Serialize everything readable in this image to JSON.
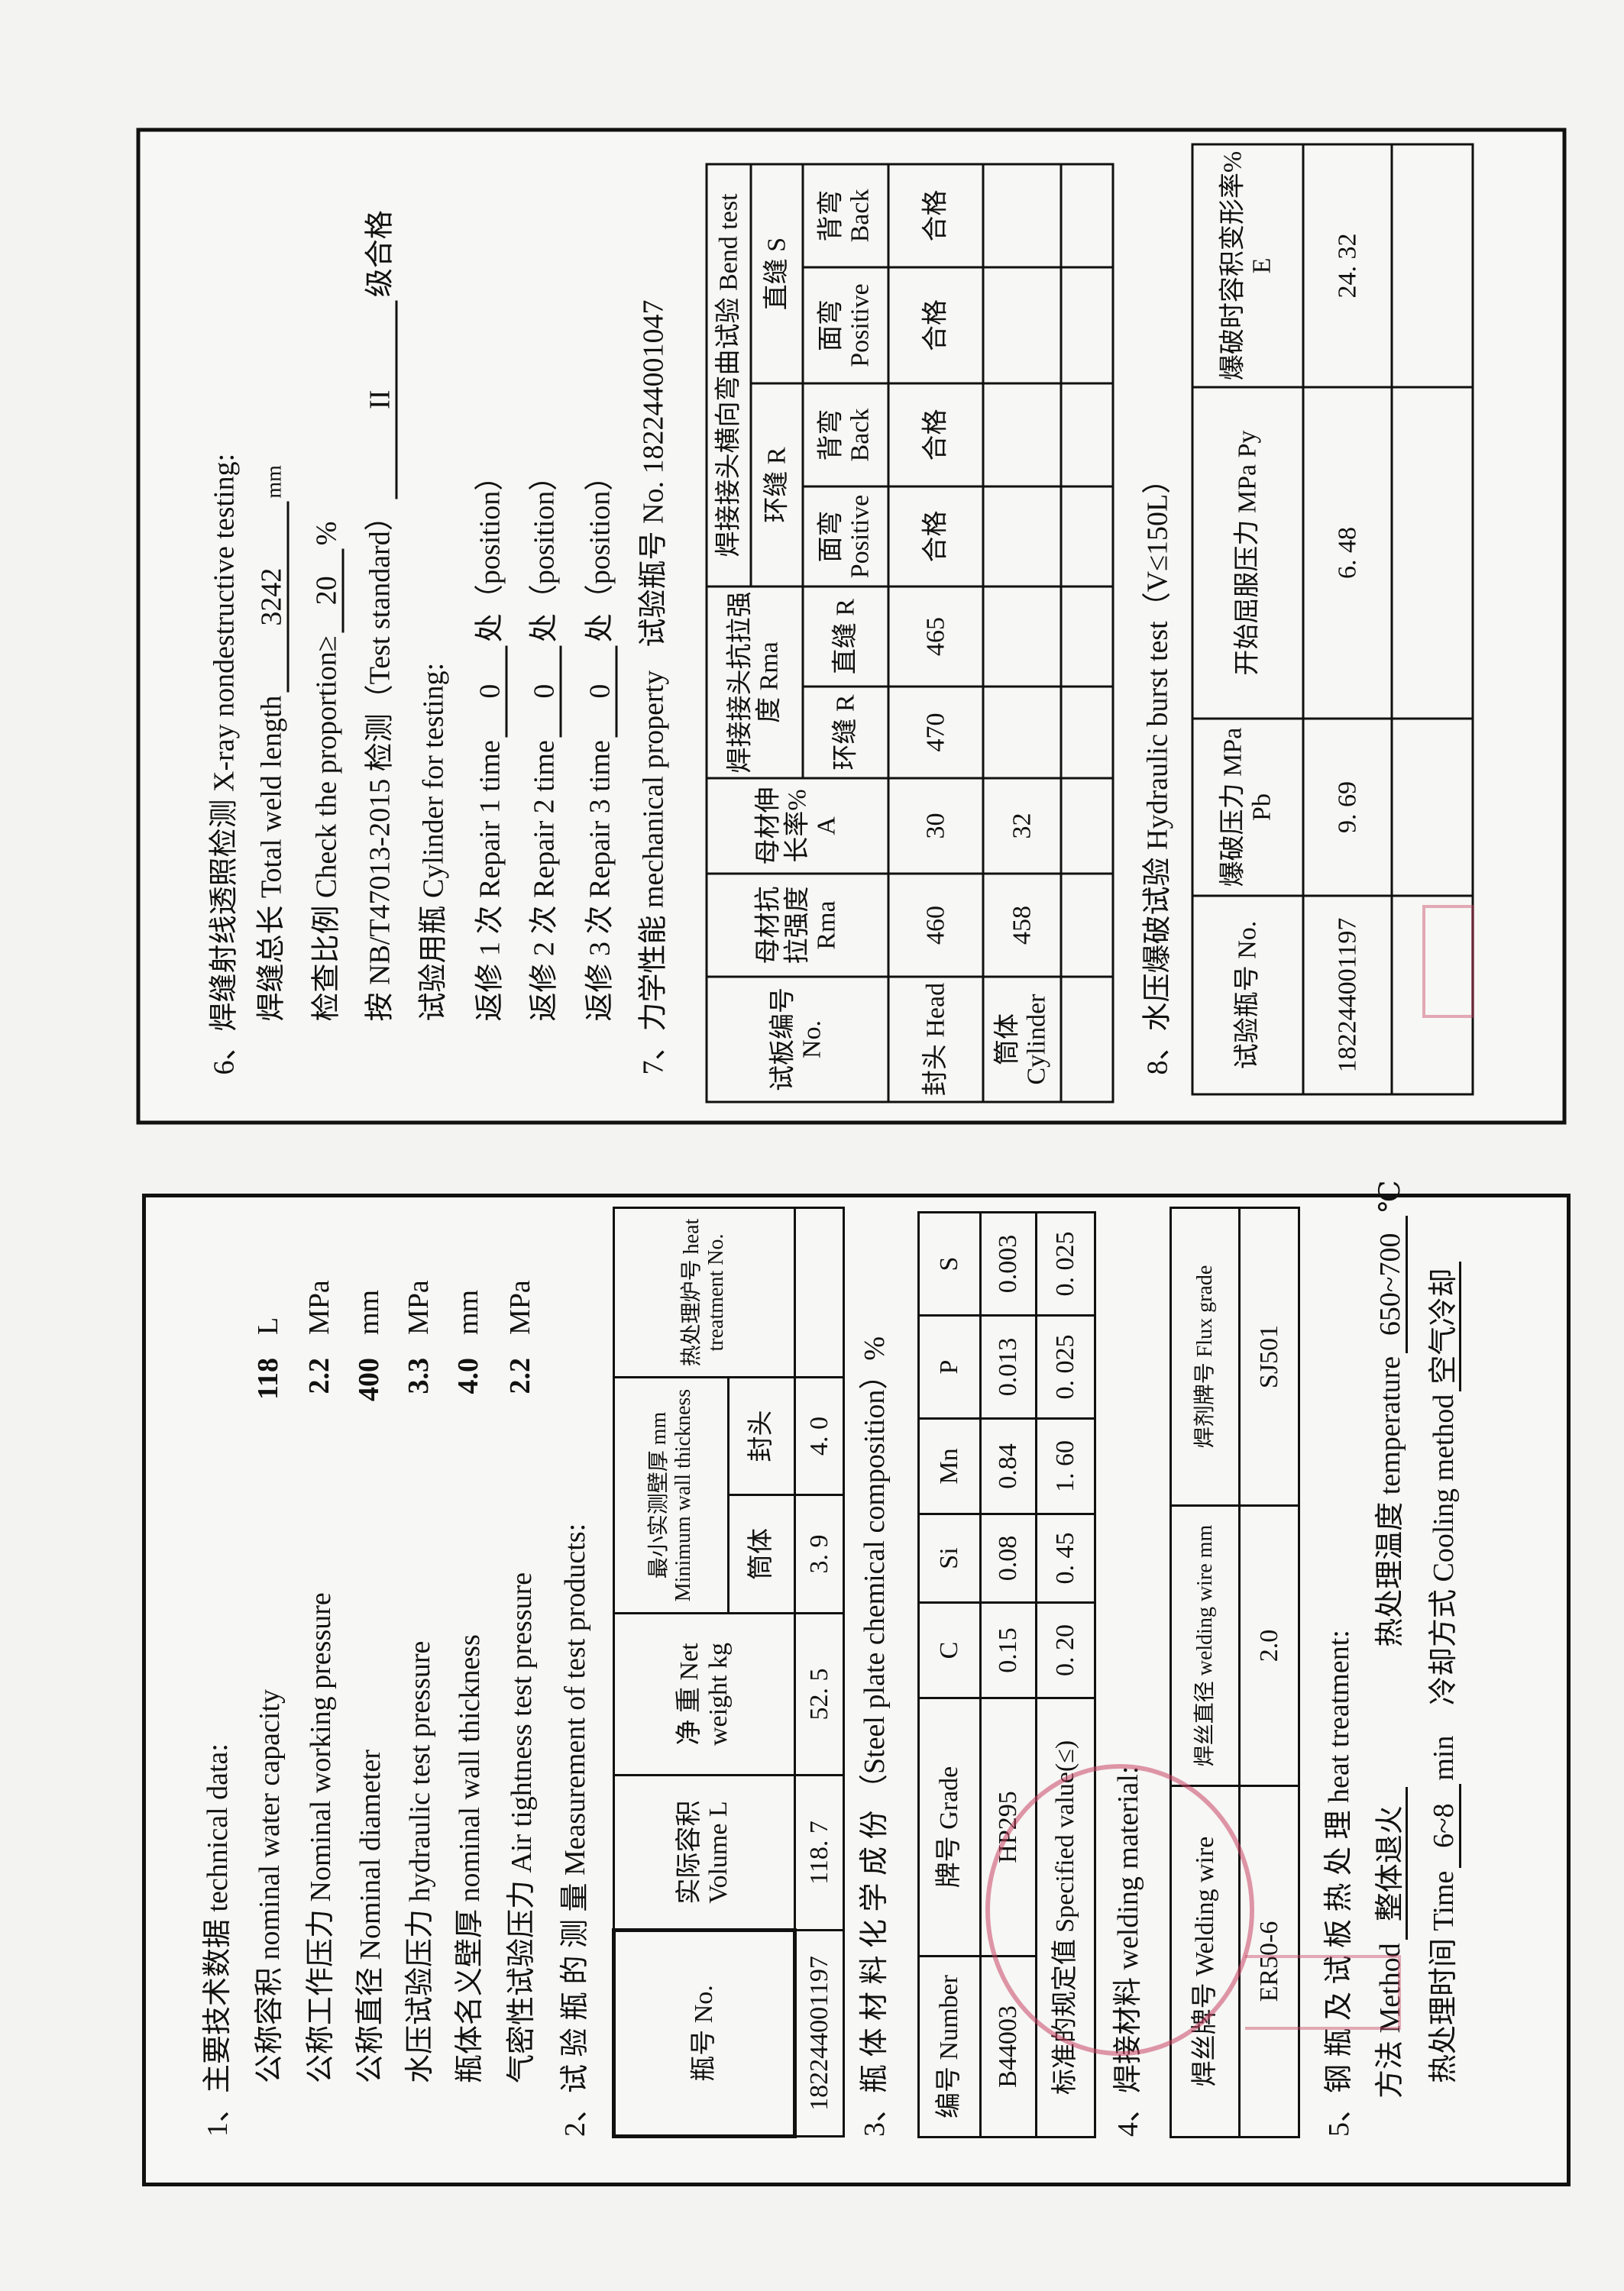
{
  "sec1": {
    "heading": "1、主要技术数据 technical data:",
    "items": [
      {
        "label": "公称容积 nominal water capacity",
        "value": "118",
        "unit": "L"
      },
      {
        "label": "公称工作压力 Nominal working pressure",
        "value": "2.2",
        "unit": "MPa"
      },
      {
        "label": "公称直径 Nominal diameter",
        "value": "400",
        "unit": "mm"
      },
      {
        "label": "水压试验压力 hydraulic test pressure",
        "value": "3.3",
        "unit": "MPa"
      },
      {
        "label": "瓶体名义壁厚 nominal wall thickness",
        "value": "4.0",
        "unit": "mm"
      },
      {
        "label": "气密性试验压力 Air tightness test pressure",
        "value": "2.2",
        "unit": "MPa"
      }
    ]
  },
  "sec2": {
    "heading": "2、试 验 瓶 的 测 量 Measurement of test products:",
    "headers": {
      "no": "瓶号 No.",
      "volume": "实际容积 Volume L",
      "weight": "净 重 Net weight kg",
      "thickness": "最小实测壁厚 mm Minimum wall thickness",
      "cylinder": "筒体",
      "head": "封头",
      "heat": "热处理炉号 heat treatment No."
    },
    "row": {
      "no": "182244001197",
      "volume": "118. 7",
      "weight": "52. 5",
      "cylinder": "3. 9",
      "head": "4. 0",
      "heat": ""
    }
  },
  "sec3": {
    "heading": "3、瓶 体 材 料 化 学 成 份 （Steel plate chemical composition）%",
    "headers": [
      "编号 Number",
      "牌号 Grade",
      "C",
      "Si",
      "Mn",
      "P",
      "S"
    ],
    "row": [
      "B44003",
      "HP295",
      "0.15",
      "0.08",
      "0.84",
      "0.013",
      "0.003"
    ],
    "spec_label": "标准的规定值 Specified value(≤)",
    "spec": [
      "0. 20",
      "0. 45",
      "1. 60",
      "0. 025",
      "0. 025"
    ]
  },
  "sec4": {
    "heading": "4、焊接材料 welding material:",
    "headers": [
      "焊丝牌号 Welding wire",
      "焊丝直径 welding wire mm",
      "焊剂牌号 Flux grade"
    ],
    "row": [
      "ER50-6",
      "2.0",
      "SJ501"
    ]
  },
  "sec5": {
    "heading": "5、钢 瓶 及 试 板 热 处 理 heat treatment:",
    "method_label": "方法 Method",
    "method": "整体退火",
    "temp_label": "热处理温度 temperature",
    "temp": "650~700",
    "temp_unit": "℃",
    "time_label": "热处理时间 Time",
    "time": "6~8",
    "time_unit": "min",
    "cooling_label": "冷却方式 Cooling method",
    "cooling": "空气冷却"
  },
  "sec6": {
    "heading": "6、焊缝射线透照检测 X-ray nondestructive testing:",
    "weld_length_label": "焊缝总长 Total weld length",
    "weld_length": "3242",
    "weld_length_unit": "mm",
    "proportion_label": "检查比例 Check the proportion≥",
    "proportion": "20",
    "proportion_unit": "%",
    "standard_label": "按 NB/T47013-2015 检测（Test standard）",
    "grade": "II",
    "grade_suffix": "级合格",
    "cylinder_label": "试验用瓶 Cylinder for testing:",
    "repairs": [
      {
        "label": "返修 1 次 Repair 1 time",
        "value": "0",
        "suffix": "处（position）"
      },
      {
        "label": "返修 2 次 Repair 2 time",
        "value": "0",
        "suffix": "处（position）"
      },
      {
        "label": "返修 3 次 Repair 3 time",
        "value": "0",
        "suffix": "处（position）"
      }
    ]
  },
  "sec7": {
    "heading": "7、力学性能 mechanical property",
    "bottle_no": "试验瓶号 No. 182244001047",
    "h": {
      "plate": "试板编号 No.",
      "base_tensile": "母材抗拉强度 Rma",
      "base_elong": "母材伸长率% A",
      "joint": "焊接接头抗拉强度 Rma",
      "bend": "焊接接头横向弯曲试验 Bend test",
      "circ": "环缝 R",
      "long": "直缝 S",
      "joint_circ": "环缝 R",
      "joint_long": "直缝 R",
      "face": "面弯 Positive",
      "back": "背弯 Back"
    },
    "rows": [
      [
        "封头 Head",
        "460",
        "30",
        "470",
        "465",
        "合格",
        "合格",
        "合格",
        "合格"
      ],
      [
        "筒体 Cylinder",
        "458",
        "32",
        "",
        "",
        "",
        "",
        "",
        ""
      ],
      [
        "",
        "",
        "",
        "",
        "",
        "",
        "",
        "",
        ""
      ]
    ]
  },
  "sec8": {
    "heading": "8、水压爆破试验 Hydraulic burst test（V≤150L）",
    "headers": [
      "试验瓶号 No.",
      "爆破压力 MPa Pb",
      "开始屈服压力 MPa Py",
      "爆破时容积变形率% E"
    ],
    "rows": [
      [
        "182244001197",
        "9. 69",
        "6. 48",
        "24. 32"
      ],
      [
        "",
        "",
        "",
        ""
      ]
    ]
  },
  "colors": {
    "ink": "#111111",
    "paper": "#f3f3f1",
    "stamp": "#c84664"
  }
}
